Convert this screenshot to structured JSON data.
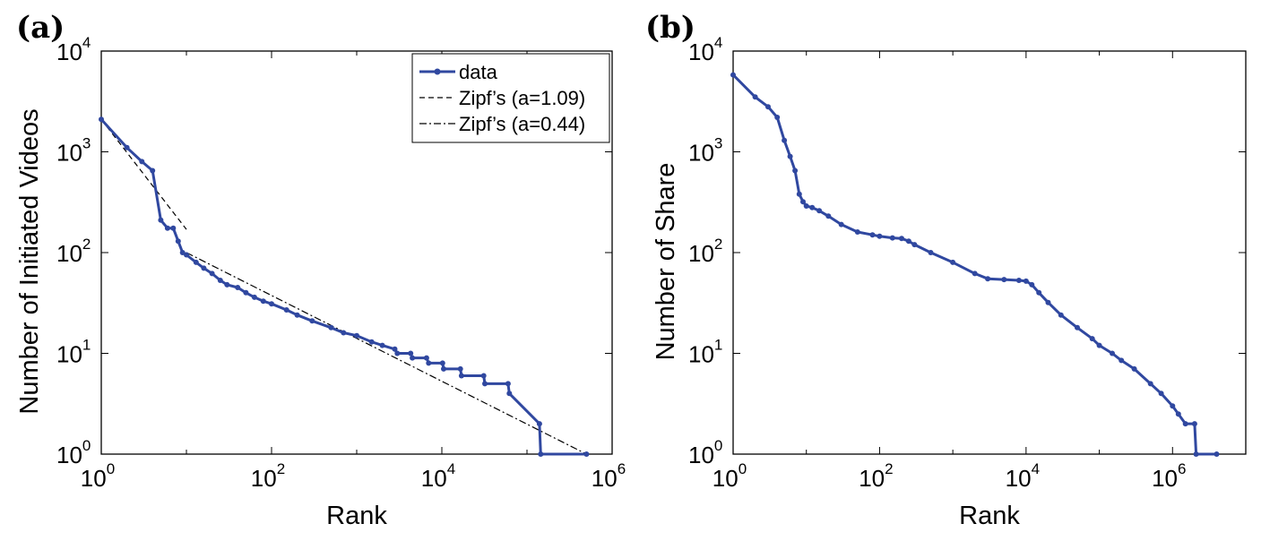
{
  "chart_data": [
    {
      "type": "line",
      "panel_label": "(a)",
      "xlabel": "Rank",
      "ylabel": "Number of Initiated Videos",
      "xscale": "log",
      "yscale": "log",
      "xlim": [
        1,
        1000000
      ],
      "ylim": [
        1,
        10000
      ],
      "x_ticks": [
        {
          "base": "10",
          "exp": "0",
          "value": 1
        },
        {
          "base": "10",
          "exp": "2",
          "value": 100
        },
        {
          "base": "10",
          "exp": "4",
          "value": 10000
        },
        {
          "base": "10",
          "exp": "6",
          "value": 1000000
        }
      ],
      "y_ticks": [
        {
          "base": "10",
          "exp": "0",
          "value": 1
        },
        {
          "base": "10",
          "exp": "1",
          "value": 10
        },
        {
          "base": "10",
          "exp": "2",
          "value": 100
        },
        {
          "base": "10",
          "exp": "3",
          "value": 1000
        },
        {
          "base": "10",
          "exp": "4",
          "value": 10000
        }
      ],
      "legend_position": "top-right",
      "series": [
        {
          "name": "data",
          "style": "solid-dots",
          "color": "#3048a0",
          "x": [
            1,
            2,
            3,
            4,
            5,
            6,
            7,
            8,
            9,
            10,
            13,
            16,
            20,
            25,
            30,
            40,
            50,
            63,
            80,
            100,
            150,
            200,
            300,
            500,
            700,
            1000,
            1500,
            2000,
            2800,
            3000,
            4300,
            4500,
            6600,
            7000,
            10200,
            10500,
            16500,
            17000,
            31000,
            32000,
            60000,
            62000,
            140000,
            145000,
            500000
          ],
          "y": [
            2100,
            1100,
            800,
            650,
            210,
            175,
            175,
            130,
            100,
            95,
            80,
            70,
            62,
            53,
            48,
            45,
            40,
            36,
            33,
            31,
            27,
            24,
            21,
            18,
            16,
            15,
            13,
            12,
            11,
            10,
            10,
            9,
            9,
            8,
            8,
            7,
            7,
            6,
            6,
            5,
            5,
            4,
            2,
            1,
            1
          ]
        },
        {
          "name": "Zipf’s (a=1.09)",
          "style": "dashed",
          "color": "#000000",
          "x": [
            1,
            10
          ],
          "y": [
            2100,
            170
          ]
        },
        {
          "name": "Zipf’s (a=0.44)",
          "style": "dashdot",
          "color": "#000000",
          "x": [
            10,
            500000
          ],
          "y": [
            100,
            1
          ]
        }
      ]
    },
    {
      "type": "line",
      "panel_label": "(b)",
      "xlabel": "Rank",
      "ylabel": "Number of Share",
      "xscale": "log",
      "yscale": "log",
      "xlim": [
        1,
        10000000
      ],
      "ylim": [
        1,
        10000
      ],
      "x_ticks": [
        {
          "base": "10",
          "exp": "0",
          "value": 1
        },
        {
          "base": "10",
          "exp": "2",
          "value": 100
        },
        {
          "base": "10",
          "exp": "4",
          "value": 10000
        },
        {
          "base": "10",
          "exp": "6",
          "value": 1000000
        }
      ],
      "y_ticks": [
        {
          "base": "10",
          "exp": "0",
          "value": 1
        },
        {
          "base": "10",
          "exp": "1",
          "value": 10
        },
        {
          "base": "10",
          "exp": "2",
          "value": 100
        },
        {
          "base": "10",
          "exp": "3",
          "value": 1000
        },
        {
          "base": "10",
          "exp": "4",
          "value": 10000
        }
      ],
      "series": [
        {
          "name": "",
          "style": "solid-dots",
          "color": "#3048a0",
          "x": [
            1,
            2,
            3,
            4,
            5,
            6,
            7,
            8,
            9,
            10,
            12,
            15,
            20,
            30,
            50,
            80,
            100,
            150,
            200,
            250,
            300,
            500,
            1000,
            2000,
            3000,
            5000,
            8000,
            10000,
            12000,
            15000,
            20000,
            30000,
            50000,
            80000,
            100000,
            150000,
            200000,
            300000,
            500000,
            700000,
            1000000,
            1200000,
            1500000,
            2000000,
            2100000,
            4000000
          ],
          "y": [
            5800,
            3500,
            2800,
            2200,
            1300,
            900,
            650,
            380,
            320,
            290,
            280,
            260,
            230,
            190,
            160,
            150,
            145,
            140,
            138,
            130,
            120,
            100,
            80,
            62,
            55,
            54,
            53,
            52,
            48,
            40,
            32,
            24,
            18,
            14,
            12,
            10,
            8.5,
            7,
            5,
            4,
            3,
            2.5,
            2,
            2,
            1,
            1
          ]
        }
      ]
    }
  ]
}
